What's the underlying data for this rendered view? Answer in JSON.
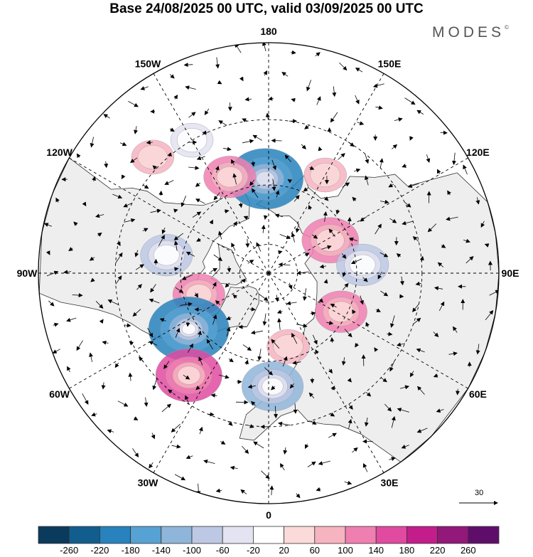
{
  "title": "Base 24/08/2025 00 UTC, valid 03/09/2025 00 UTC",
  "brand": "MODES",
  "brand_mark": "©",
  "longitude_labels": [
    {
      "text": "180",
      "lon": 180
    },
    {
      "text": "150E",
      "lon": 150
    },
    {
      "text": "120E",
      "lon": 120
    },
    {
      "text": "90E",
      "lon": 90
    },
    {
      "text": "60E",
      "lon": 60
    },
    {
      "text": "30E",
      "lon": 30
    },
    {
      "text": "0",
      "lon": 0
    },
    {
      "text": "30W",
      "lon": -30
    },
    {
      "text": "60W",
      "lon": -60
    },
    {
      "text": "90W",
      "lon": -90
    },
    {
      "text": "120W",
      "lon": -120
    },
    {
      "text": "150W",
      "lon": -150
    }
  ],
  "latitude_circles": [
    80,
    60,
    40
  ],
  "reference_vector": {
    "value": "30"
  },
  "colorbar": {
    "ticks": [
      "-260",
      "-220",
      "-180",
      "-140",
      "-100",
      "-60",
      "-20",
      "20",
      "60",
      "100",
      "140",
      "180",
      "220",
      "260"
    ],
    "colors": [
      "#0a3a5c",
      "#115e8e",
      "#2782bd",
      "#55a2d3",
      "#8fb5da",
      "#bcc8e4",
      "#e3e3f1",
      "#ffffff",
      "#fbdada",
      "#f6b3c0",
      "#f07fb1",
      "#e04aa0",
      "#c31d8c",
      "#921879",
      "#5e0e6a"
    ]
  },
  "anomalies": [
    {
      "name": "low-north-pacific",
      "lon": -178,
      "lat": 58,
      "value": -200
    },
    {
      "name": "high-bering",
      "lon": -158,
      "lat": 55,
      "value": 100
    },
    {
      "name": "high-east-siberia",
      "lon": 150,
      "lat": 52,
      "value": 60
    },
    {
      "name": "high-northeast-asia",
      "lon": 118,
      "lat": 66,
      "value": 120
    },
    {
      "name": "low-central-siberia",
      "lon": 95,
      "lat": 58,
      "value": -100
    },
    {
      "name": "high-west-siberia",
      "lon": 62,
      "lat": 62,
      "value": 100
    },
    {
      "name": "low-hudson-bay",
      "lon": -100,
      "lat": 55,
      "value": -100
    },
    {
      "name": "high-baffin",
      "lon": -73,
      "lat": 65,
      "value": 100
    },
    {
      "name": "low-labrador",
      "lon": -55,
      "lat": 57,
      "value": -220
    },
    {
      "name": "high-north-atlantic",
      "lon": -38,
      "lat": 47,
      "value": 160
    },
    {
      "name": "low-europe",
      "lon": 2,
      "lat": 52,
      "value": -140
    },
    {
      "name": "high-scandinavia",
      "lon": 15,
      "lat": 64,
      "value": 60
    },
    {
      "name": "high-northwest-pacific",
      "lon": -135,
      "lat": 37,
      "value": 60
    },
    {
      "name": "low-west-pacific-small",
      "lon": -150,
      "lat": 40,
      "value": -60
    }
  ]
}
